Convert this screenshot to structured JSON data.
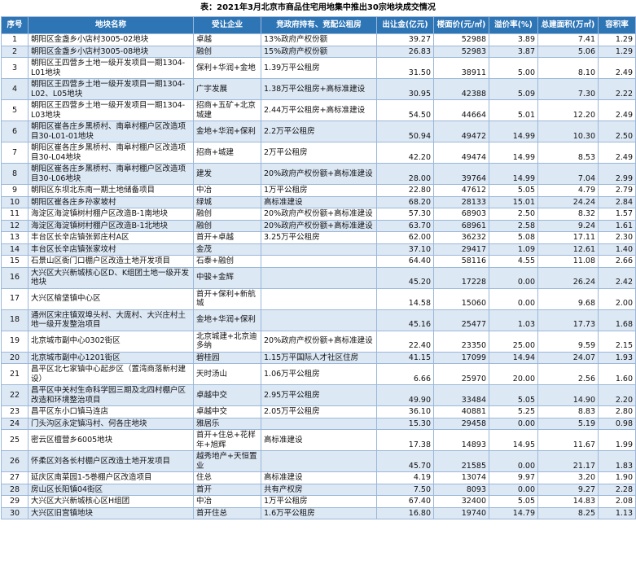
{
  "header": {
    "title": "表：2021年3月北京市商品住宅用地集中推出30宗地块成交情况"
  },
  "table": {
    "columns": [
      "序号",
      "地块名称",
      "受让企业",
      "竞政府持有、竞配公租房",
      "出让金(亿元)",
      "楼面价(元/㎡)",
      "溢价率(%)",
      "总建面积(万㎡)",
      "容积率"
    ],
    "rows": [
      [
        "1",
        "朝阳区金盏乡小店村3005-02地块",
        "卓越",
        "13%政府产权份额",
        "39.27",
        "52988",
        "3.89",
        "7.41",
        "1.29"
      ],
      [
        "2",
        "朝阳区金盏乡小店村3005-08地块",
        "融创",
        "15%政府产权份额",
        "26.83",
        "52983",
        "3.87",
        "5.06",
        "1.29"
      ],
      [
        "3",
        "朝阳区王四营乡土地一级开发项目一期1304-L01地块",
        "保利+华润+金地",
        "1.39万平公租房",
        "31.50",
        "38911",
        "5.00",
        "8.10",
        "2.49"
      ],
      [
        "4",
        "朝阳区王四营乡土地一级开发项目一期1304-L02、L05地块",
        "广宇发展",
        "1.38万平公租房+高标准建设",
        "30.95",
        "42388",
        "5.09",
        "7.30",
        "2.22"
      ],
      [
        "5",
        "朝阳区王四营乡土地一级开发项目一期1304-L03地块",
        "招商+五矿+北京城建",
        "2.44万平公租房+高标准建设",
        "54.50",
        "44664",
        "5.01",
        "12.20",
        "2.49"
      ],
      [
        "6",
        "朝阳区崔各庄乡黑桥村、南皋村棚户区改造项目30-L01-01地块",
        "金地+华润+保利",
        "2.2万平公租房",
        "50.94",
        "49472",
        "14.99",
        "10.30",
        "2.50"
      ],
      [
        "7",
        "朝阳区崔各庄乡黑桥村、南皋村棚户区改造项目30-L04地块",
        "招商+城建",
        "2万平公租房",
        "42.20",
        "49474",
        "14.99",
        "8.53",
        "2.49"
      ],
      [
        "8",
        "朝阳区崔各庄乡黑桥村、南皋村棚户区改造项目30-L06地块",
        "建发",
        "20%政府产权份额+高标准建设",
        "28.00",
        "39764",
        "14.99",
        "7.04",
        "2.99"
      ],
      [
        "9",
        "朝阳区东坝北东南一期土地储备项目",
        "中冶",
        "1万平公租房",
        "22.80",
        "47612",
        "5.05",
        "4.79",
        "2.79"
      ],
      [
        "10",
        "朝阳区崔各庄乡孙家坡村",
        "绿城",
        "高标准建设",
        "68.20",
        "28133",
        "15.01",
        "24.24",
        "2.84"
      ],
      [
        "11",
        "海淀区海淀镇树村棚户区改造B-1南地块",
        "融创",
        "20%政府产权份额+高标准建设",
        "57.30",
        "68903",
        "2.50",
        "8.32",
        "1.57"
      ],
      [
        "12",
        "海淀区海淀镇树村棚户区改造B-1北地块",
        "融创",
        "20%政府产权份额+高标准建设",
        "63.70",
        "68961",
        "2.58",
        "9.24",
        "1.61"
      ],
      [
        "13",
        "丰台区长辛店镇张郭庄村A区",
        "首开+卓越",
        "3.25万平公租房",
        "62.00",
        "36232",
        "5.08",
        "17.11",
        "2.30"
      ],
      [
        "14",
        "丰台区长辛店镇张家坟村",
        "金茂",
        null,
        "37.10",
        "29417",
        "1.09",
        "12.61",
        "1.40"
      ],
      [
        "15",
        "石景山区衙门口棚户区改造土地开发项目",
        "石泰+融创",
        null,
        "64.40",
        "58116",
        "4.55",
        "11.08",
        "2.66"
      ],
      [
        "16",
        "大兴区大兴新城核心区D、K组团土地一级开发地块",
        "中骏+金辉",
        null,
        "45.20",
        "17228",
        "0.00",
        "26.24",
        "2.42"
      ],
      [
        "17",
        "大兴区榆垡镇中心区",
        "首开+保利+新航城",
        null,
        "14.58",
        "15060",
        "0.00",
        "9.68",
        "2.00"
      ],
      [
        "18",
        "通州区宋庄镇双埠头村、大庞村、大兴庄村土地一级开发整治项目",
        "金地+华润+保利",
        null,
        "45.16",
        "25477",
        "1.03",
        "17.73",
        "1.68"
      ],
      [
        "19",
        "北京城市副中心0302街区",
        "北京城建+北京迪多纳",
        "20%政府产权份额+高标准建设",
        "22.40",
        "23350",
        "25.00",
        "9.59",
        "2.15"
      ],
      [
        "20",
        "北京城市副中心1201街区",
        "碧桂园",
        "1.15万平国际人才社区住房",
        "41.15",
        "17099",
        "14.94",
        "24.07",
        "1.93"
      ],
      [
        "21",
        "昌平区北七家镇中心起步区（置湾商落新村建设）",
        "天时汤山",
        "1.06万平公租房",
        "6.66",
        "25970",
        "20.00",
        "2.56",
        "1.60"
      ],
      [
        "22",
        "昌平区中关村生命科学园三期及北四村棚户区改造和环境整治项目",
        "卓越中交",
        "2.95万平公租房",
        "49.90",
        "33484",
        "5.05",
        "14.90",
        "2.20"
      ],
      [
        "23",
        "昌平区东小口镇马连店",
        "卓越中交",
        "2.05万平公租房",
        "36.10",
        "40881",
        "5.25",
        "8.83",
        "2.80"
      ],
      [
        "24",
        "门头沟区永定镇冯村、何各庄地块",
        "雅居乐",
        null,
        "15.30",
        "29458",
        "0.00",
        "5.19",
        "0.98"
      ],
      [
        "25",
        "密云区檀营乡6005地块",
        "首开+住总+花样年+旭辉",
        "高标准建设",
        "17.38",
        "14893",
        "14.95",
        "11.67",
        "1.99"
      ],
      [
        "26",
        "怀柔区刘各长村棚户区改造土地开发项目",
        "越秀地产+天恒置业",
        null,
        "45.70",
        "21585",
        "0.00",
        "21.17",
        "1.83"
      ],
      [
        "27",
        "延庆区南菜园1-5巻棚户区改造项目",
        "住总",
        "高标准建设",
        "4.19",
        "13074",
        "9.97",
        "3.20",
        "1.90"
      ],
      [
        "28",
        "房山区长阳镇04街区",
        "首开",
        "共有产权房",
        "7.50",
        "8093",
        "0.00",
        "9.27",
        "2.28"
      ],
      [
        "29",
        "大兴区大兴新城核心区H组团",
        "中冶",
        "1万平公租房",
        "67.40",
        "32400",
        "5.05",
        "14.83",
        "2.08"
      ],
      [
        "30",
        "大兴区旧宫镇地块",
        "首开住总",
        "1.6万平公租房",
        "16.80",
        "19740",
        "14.79",
        "8.25",
        "1.13"
      ]
    ]
  }
}
